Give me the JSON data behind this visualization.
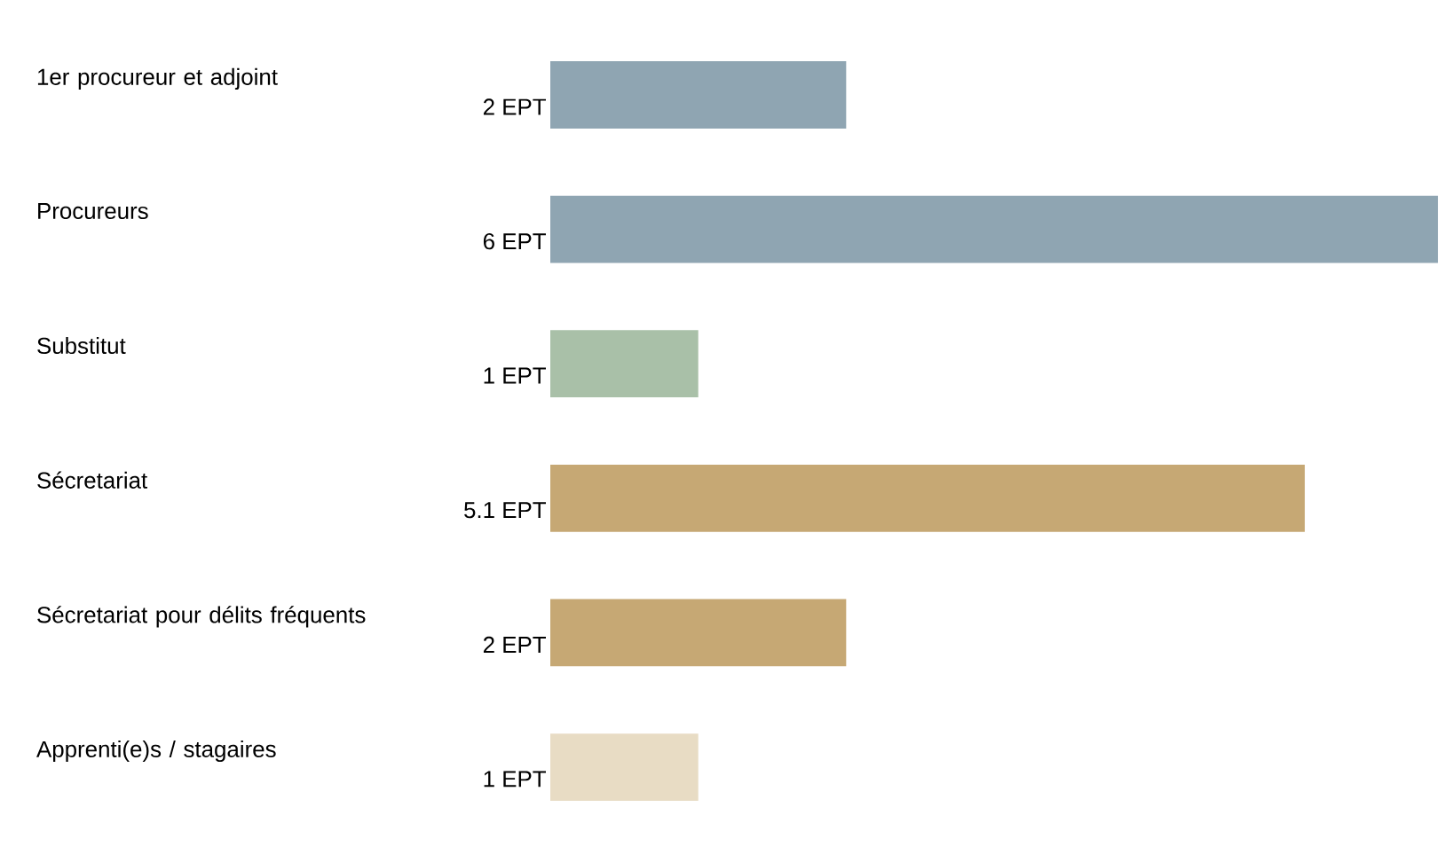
{
  "chart_data": {
    "type": "bar",
    "orientation": "horizontal",
    "categories": [
      "1er procureur et adjoint",
      "Procureurs",
      "Substitut",
      "Sécretariat",
      "Sécretariat pour délits fréquents",
      "Apprenti(e)s / stagaires"
    ],
    "values": [
      2,
      6,
      1,
      5.1,
      2,
      1
    ],
    "value_labels": [
      "2 EPT",
      "6 EPT",
      "1 EPT",
      "5.1 EPT",
      "2 EPT",
      "1 EPT"
    ],
    "colors": [
      "#8fa5b2",
      "#8fa5b2",
      "#a9c0a8",
      "#c6a874",
      "#c6a874",
      "#e8dcc4"
    ],
    "tick_labels": "y"
  }
}
